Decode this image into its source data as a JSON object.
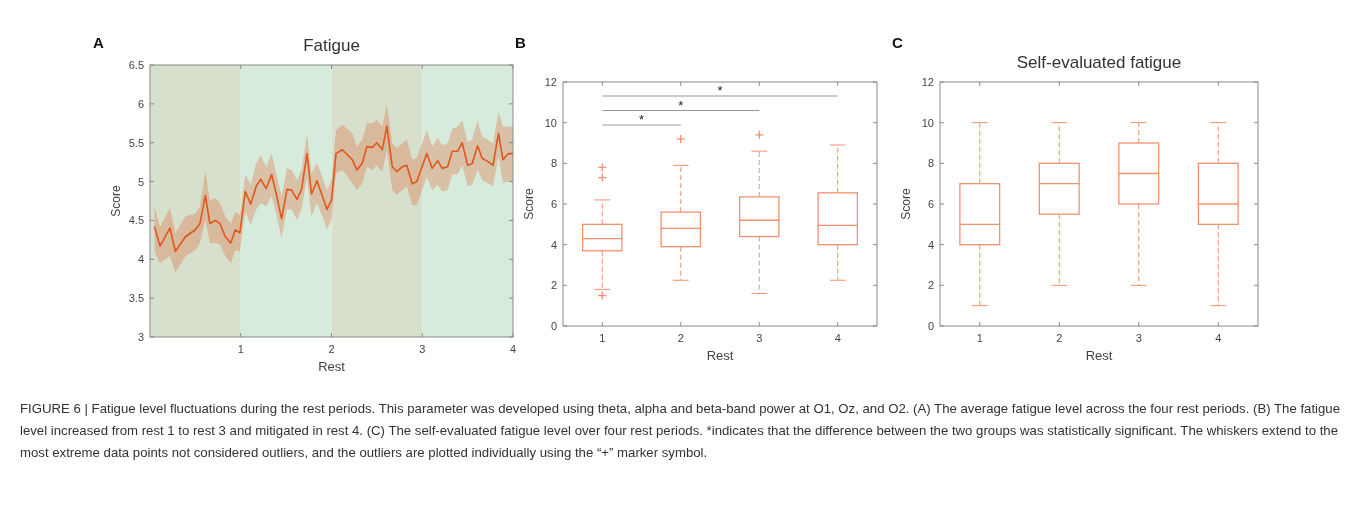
{
  "chart_data": [
    {
      "type": "line",
      "title": "Fatigue",
      "xlabel": "Rest",
      "ylabel": "Score",
      "annotations": [
        "A",
        "FIGURE 6 | Fatigue level fluctuations during the rest periods. This parameter was developed using theta, alpha and beta-band power at O1, Oz, and O2. (A) The average fatigue level across the four rest periods. (B) The fatigue level increased from rest 1 to rest 3 and mitigated in rest 4. (C) The self-evaluated fatigue level over four rest periods. *indicates that the difference between the two groups was statistically significant. The whiskers extend to the most extreme data points not considered outliers, and the outliers are plotted individually using the “+” marker symbol."
      ],
      "xlim": [
        0,
        4
      ],
      "xticks": [
        1,
        2,
        3,
        4
      ],
      "ylim": [
        3,
        6.5
      ],
      "yticks": [
        3,
        3.5,
        4,
        4.5,
        5,
        5.5,
        6,
        6.5
      ],
      "grid": false,
      "bands": [
        {
          "axis": "x",
          "from": 0,
          "to": 1,
          "color": "#d7dfcd"
        },
        {
          "axis": "x",
          "from": 1,
          "to": 2,
          "color": "#d6ebdc"
        },
        {
          "axis": "x",
          "from": 2,
          "to": 3,
          "color": "#d7dfcd"
        },
        {
          "axis": "x",
          "from": 3,
          "to": 4,
          "color": "#d6ebdc"
        }
      ],
      "x": [
        0.05,
        0.11,
        0.22,
        0.28,
        0.39,
        0.5,
        0.55,
        0.61,
        0.66,
        0.72,
        0.77,
        0.83,
        0.89,
        0.94,
        0.99,
        1.05,
        1.11,
        1.17,
        1.22,
        1.28,
        1.34,
        1.39,
        1.45,
        1.51,
        1.56,
        1.62,
        1.67,
        1.73,
        1.78,
        1.84,
        1.9,
        1.95,
        2,
        2.05,
        2.12,
        2.23,
        2.28,
        2.34,
        2.39,
        2.45,
        2.5,
        2.56,
        2.61,
        2.67,
        2.72,
        2.78,
        2.83,
        2.89,
        2.94,
        3.05,
        3.11,
        3.17,
        3.22,
        3.28,
        3.33,
        3.39,
        3.44,
        3.5,
        3.55,
        3.61,
        3.66,
        3.72,
        3.78,
        3.84,
        3.89,
        3.95,
        4
      ],
      "series": [
        {
          "color": "#e0571c",
          "values": [
            4.42,
            4.17,
            4.4,
            4.1,
            4.29,
            4.38,
            4.46,
            4.82,
            4.46,
            4.5,
            4.46,
            4.29,
            4.21,
            4.38,
            4.34,
            4.87,
            4.71,
            4.94,
            5.03,
            4.91,
            5.09,
            4.85,
            4.52,
            4.9,
            4.89,
            4.77,
            4.9,
            5.36,
            4.84,
            5.01,
            4.81,
            4.64,
            4.76,
            5.36,
            5.41,
            5.28,
            5.15,
            5.24,
            5.45,
            5.44,
            5.5,
            5.41,
            5.71,
            5.19,
            5.13,
            5.19,
            5.21,
            4.97,
            5,
            5.36,
            5.17,
            5.27,
            5.17,
            5.19,
            5.39,
            5.39,
            5.5,
            5.21,
            5.23,
            5.46,
            5.3,
            5.26,
            5.21,
            5.62,
            5.28,
            5.36,
            5.36
          ],
          "upper": [
            4.68,
            4.42,
            4.66,
            4.34,
            4.55,
            4.59,
            4.68,
            5.13,
            4.76,
            4.79,
            4.72,
            4.55,
            4.46,
            4.61,
            4.57,
            5.09,
            4.96,
            5.24,
            5.34,
            5.19,
            5.36,
            5.11,
            4.81,
            5.17,
            5.15,
            5.02,
            5.15,
            5.62,
            5.11,
            5.24,
            5.06,
            4.89,
            5.02,
            5.66,
            5.73,
            5.62,
            5.45,
            5.54,
            5.75,
            5.75,
            5.79,
            5.71,
            6,
            5.49,
            5.43,
            5.49,
            5.54,
            5.28,
            5.3,
            5.66,
            5.45,
            5.56,
            5.47,
            5.49,
            5.68,
            5.71,
            5.79,
            5.51,
            5.54,
            5.79,
            5.58,
            5.54,
            5.49,
            5.9,
            5.71,
            5.71,
            5.71
          ],
          "lower": [
            4.1,
            3.95,
            4.04,
            3.83,
            4.04,
            4.12,
            4.21,
            4.51,
            4.21,
            4.21,
            4.19,
            4.04,
            3.95,
            4.12,
            4.1,
            4.61,
            4.44,
            4.64,
            4.72,
            4.68,
            4.81,
            4.59,
            4.27,
            4.64,
            4.64,
            4.51,
            4.64,
            5.06,
            4.55,
            4.72,
            4.55,
            4.38,
            4.51,
            5.11,
            5.15,
            4.98,
            4.89,
            4.98,
            5.19,
            5.15,
            5.21,
            5.13,
            5.41,
            4.89,
            4.83,
            4.89,
            4.94,
            4.7,
            4.7,
            5.06,
            4.89,
            4.96,
            4.87,
            4.89,
            5.09,
            5.09,
            5.21,
            4.94,
            4.96,
            5.15,
            5.02,
            4.98,
            4.94,
            5.32,
            4.98,
            5,
            5
          ]
        }
      ]
    },
    {
      "type": "box",
      "xlabel": "Rest",
      "ylabel": "Score",
      "annotations": [
        "B",
        "*",
        "*",
        "*"
      ],
      "categories": [
        "1",
        "2",
        "3",
        "4"
      ],
      "ylim": [
        0,
        12
      ],
      "yticks": [
        0,
        2,
        4,
        6,
        8,
        10,
        12
      ],
      "grid": false,
      "marker": "cross",
      "line_style": "dashed",
      "series": [
        {
          "color": "#f4916e",
          "boxes": [
            {
              "low": 1.8,
              "q1": 3.7,
              "median": 4.3,
              "q3": 5.0,
              "high": 6.2,
              "outliers": [
                7.8,
                7.3,
                1.5
              ]
            },
            {
              "low": 2.25,
              "q1": 3.9,
              "median": 4.8,
              "q3": 5.6,
              "high": 7.9,
              "outliers": [
                9.2
              ]
            },
            {
              "low": 1.6,
              "q1": 4.4,
              "median": 5.2,
              "q3": 6.35,
              "high": 8.6,
              "outliers": [
                9.4
              ]
            },
            {
              "low": 2.25,
              "q1": 4.0,
              "median": 4.95,
              "q3": 6.55,
              "high": 8.9
            }
          ]
        }
      ]
    },
    {
      "type": "box",
      "title": "Self-evaluated fatigue",
      "xlabel": "Rest",
      "ylabel": "Score",
      "annotations": [
        "C"
      ],
      "categories": [
        "1",
        "2",
        "3",
        "4"
      ],
      "ylim": [
        0,
        12
      ],
      "yticks": [
        0,
        2,
        4,
        6,
        8,
        10,
        12
      ],
      "grid": false,
      "line_style": "dashed",
      "series": [
        {
          "color": "#f4916e",
          "boxes": [
            {
              "low": 1,
              "q1": 4,
              "median": 5,
              "q3": 7,
              "high": 10
            },
            {
              "low": 2,
              "q1": 5.5,
              "median": 7,
              "q3": 8,
              "high": 10
            },
            {
              "low": 2,
              "q1": 6,
              "median": 7.5,
              "q3": 9,
              "high": 10
            },
            {
              "low": 1,
              "q1": 5,
              "median": 6,
              "q3": 8,
              "high": 10
            }
          ]
        }
      ]
    }
  ]
}
